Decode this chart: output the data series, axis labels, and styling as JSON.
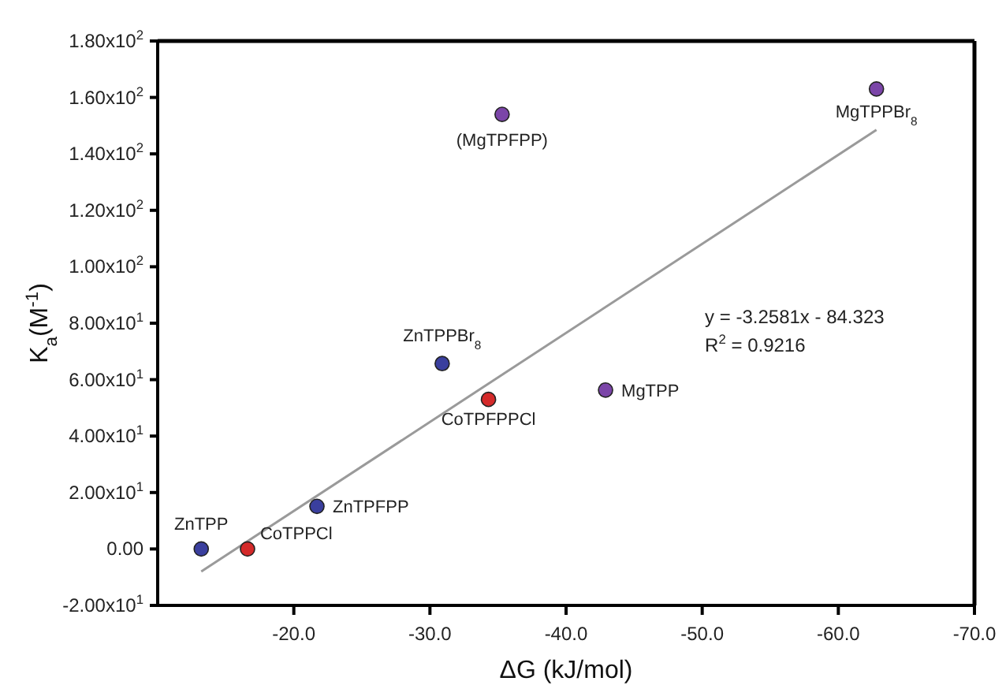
{
  "chart_data": {
    "type": "scatter",
    "xlabel": "ΔG (kJ/mol)",
    "ylabel": "K$_{a}$(M$^{-1}$)",
    "grid": false,
    "legend": false,
    "xlim": [
      -10,
      -70
    ],
    "ylim": [
      -20,
      180
    ],
    "xticks": [
      {
        "value": -20,
        "label": "-20.0"
      },
      {
        "value": -30,
        "label": "-30.0"
      },
      {
        "value": -40,
        "label": "-40.0"
      },
      {
        "value": -50,
        "label": "-50.0"
      },
      {
        "value": -60,
        "label": "-60.0"
      },
      {
        "value": -70,
        "label": "-70.0"
      }
    ],
    "yticks": [
      {
        "value": -20,
        "label": "-2.00x10$^{1}$"
      },
      {
        "value": 0,
        "label": "0.00"
      },
      {
        "value": 20,
        "label": "2.00x10$^{1}$"
      },
      {
        "value": 40,
        "label": "4.00x10$^{1}$"
      },
      {
        "value": 60,
        "label": "6.00x10$^{1}$"
      },
      {
        "value": 80,
        "label": "8.00x10$^{1}$"
      },
      {
        "value": 100,
        "label": "1.00x10$^{2}$"
      },
      {
        "value": 120,
        "label": "1.20x10$^{2}$"
      },
      {
        "value": 140,
        "label": "1.40x10$^{2}$"
      },
      {
        "value": 160,
        "label": "1.60x10$^{2}$"
      },
      {
        "value": 180,
        "label": "1.80x10$^{2}$"
      }
    ],
    "series": [
      {
        "marker": "circle",
        "color": "#3a3f9e",
        "x": [
          -13.2,
          -21.7,
          -30.9
        ],
        "values": [
          0,
          15.1,
          65.7
        ]
      },
      {
        "marker": "circle",
        "color": "#d42a2a",
        "x": [
          -16.6,
          -34.3
        ],
        "values": [
          0,
          53
        ]
      },
      {
        "marker": "circle",
        "color": "#7b45a8",
        "x": [
          -35.3,
          -42.9,
          -62.8
        ],
        "values": [
          154,
          56.3,
          163
        ]
      },
      {
        "type": "line",
        "marker": "none",
        "color": "#9a9a9a",
        "x": [
          -13.2,
          -62.8
        ],
        "values": [
          -8,
          148.5
        ]
      }
    ],
    "annotations": [
      {
        "text": "ZnTPP",
        "x": -13.2,
        "y": 0
      },
      {
        "text": "CoTPPCl",
        "x": -16.6,
        "y": 0
      },
      {
        "text": "ZnTPFPP",
        "x": -21.7,
        "y": 15.1
      },
      {
        "text": "ZnTPPBr$_{8}$",
        "x": -30.9,
        "y": 65.7
      },
      {
        "text": "CoTPFPPCl",
        "x": -34.3,
        "y": 53
      },
      {
        "text": "(MgTPFPP)",
        "x": -35.3,
        "y": 154
      },
      {
        "text": "MgTPP",
        "x": -42.9,
        "y": 56.3
      },
      {
        "text": "MgTPPBr$_{8}$",
        "x": -62.8,
        "y": 163
      },
      "y = -3.2581x - 84.323",
      "R$^{2}$ = 0.9216"
    ]
  }
}
